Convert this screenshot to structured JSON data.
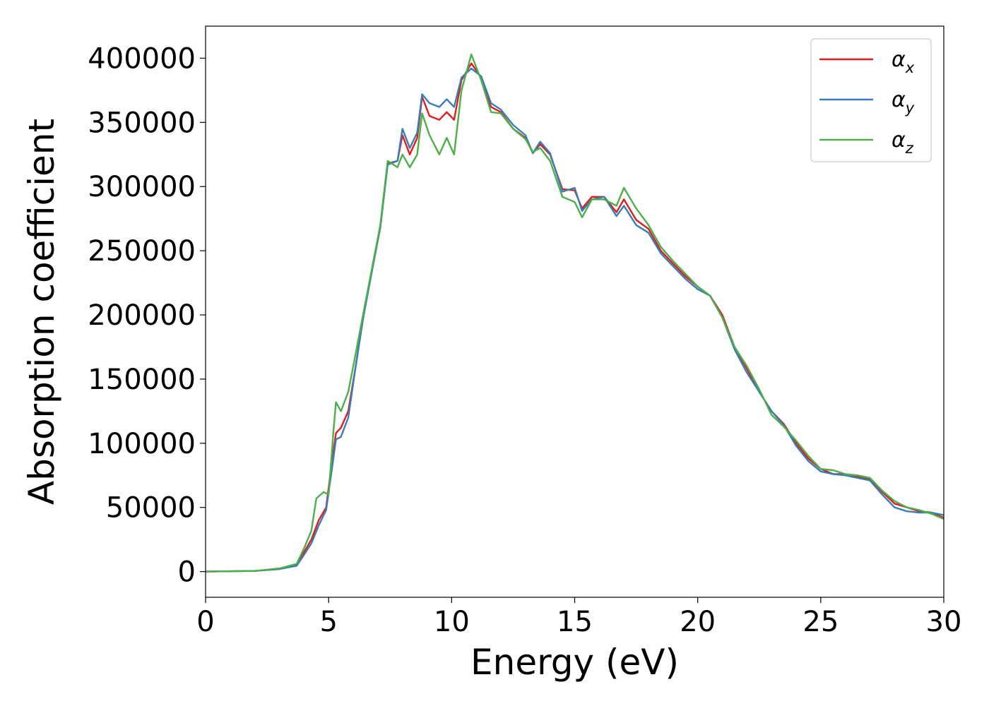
{
  "chart_data": {
    "type": "line",
    "title": "",
    "xlabel": "Energy (eV)",
    "ylabel": "Absorption coefficient",
    "xlim": [
      0,
      30
    ],
    "ylim": [
      -20000,
      425000
    ],
    "xticks": [
      0,
      5,
      10,
      15,
      20,
      25,
      30
    ],
    "xtick_labels": [
      "0",
      "5",
      "10",
      "15",
      "20",
      "25",
      "30"
    ],
    "yticks": [
      0,
      50000,
      100000,
      150000,
      200000,
      250000,
      300000,
      350000,
      400000
    ],
    "ytick_labels": [
      "0",
      "50000",
      "100000",
      "150000",
      "200000",
      "250000",
      "300000",
      "350000",
      "400000"
    ],
    "grid": false,
    "legend_position": "top-right",
    "series": [
      {
        "name": "α_x",
        "symbol": "α",
        "subscript": "x",
        "color": "#e41a1c",
        "points": [
          [
            0,
            0
          ],
          [
            2,
            500
          ],
          [
            3,
            2000
          ],
          [
            3.7,
            5000
          ],
          [
            4,
            15000
          ],
          [
            4.3,
            25000
          ],
          [
            4.6,
            40000
          ],
          [
            4.9,
            50000
          ],
          [
            5.1,
            80000
          ],
          [
            5.3,
            108000
          ],
          [
            5.5,
            112000
          ],
          [
            5.8,
            125000
          ],
          [
            6.1,
            160000
          ],
          [
            6.4,
            197000
          ],
          [
            6.8,
            240000
          ],
          [
            7.1,
            268000
          ],
          [
            7.4,
            318000
          ],
          [
            7.8,
            320000
          ],
          [
            8.0,
            340000
          ],
          [
            8.3,
            325000
          ],
          [
            8.6,
            338000
          ],
          [
            8.8,
            370000
          ],
          [
            9.1,
            355000
          ],
          [
            9.5,
            352000
          ],
          [
            9.8,
            358000
          ],
          [
            10.1,
            352000
          ],
          [
            10.4,
            383000
          ],
          [
            10.8,
            396000
          ],
          [
            11.2,
            385000
          ],
          [
            11.6,
            362000
          ],
          [
            12,
            358000
          ],
          [
            12.5,
            345000
          ],
          [
            13,
            338000
          ],
          [
            13.3,
            326000
          ],
          [
            13.6,
            333000
          ],
          [
            14,
            325000
          ],
          [
            14.5,
            298000
          ],
          [
            15,
            297000
          ],
          [
            15.3,
            283000
          ],
          [
            15.7,
            292000
          ],
          [
            16.2,
            292000
          ],
          [
            16.7,
            280000
          ],
          [
            17,
            290000
          ],
          [
            17.5,
            274000
          ],
          [
            18,
            267000
          ],
          [
            18.5,
            250000
          ],
          [
            19,
            240000
          ],
          [
            19.5,
            230000
          ],
          [
            20,
            222000
          ],
          [
            20.5,
            215000
          ],
          [
            21,
            200000
          ],
          [
            21.5,
            175000
          ],
          [
            22,
            158000
          ],
          [
            22.5,
            140000
          ],
          [
            23,
            125000
          ],
          [
            23.5,
            115000
          ],
          [
            24,
            100000
          ],
          [
            24.5,
            88000
          ],
          [
            25,
            80000
          ],
          [
            25.5,
            76000
          ],
          [
            26,
            76000
          ],
          [
            26.5,
            74000
          ],
          [
            27,
            72000
          ],
          [
            27.5,
            62000
          ],
          [
            28,
            53000
          ],
          [
            28.5,
            50000
          ],
          [
            29,
            47000
          ],
          [
            29.5,
            46000
          ],
          [
            30,
            42000
          ]
        ]
      },
      {
        "name": "α_y",
        "symbol": "α",
        "subscript": "y",
        "color": "#377eb8",
        "points": [
          [
            0,
            0
          ],
          [
            2,
            500
          ],
          [
            3,
            2000
          ],
          [
            3.7,
            4500
          ],
          [
            4,
            13000
          ],
          [
            4.3,
            22000
          ],
          [
            4.6,
            36000
          ],
          [
            4.9,
            48000
          ],
          [
            5.1,
            75000
          ],
          [
            5.3,
            103000
          ],
          [
            5.5,
            105000
          ],
          [
            5.8,
            120000
          ],
          [
            6.1,
            160000
          ],
          [
            6.4,
            197000
          ],
          [
            6.8,
            238000
          ],
          [
            7.1,
            268000
          ],
          [
            7.4,
            317000
          ],
          [
            7.8,
            320000
          ],
          [
            8.0,
            345000
          ],
          [
            8.3,
            330000
          ],
          [
            8.6,
            342000
          ],
          [
            8.8,
            372000
          ],
          [
            9.1,
            365000
          ],
          [
            9.5,
            362000
          ],
          [
            9.8,
            368000
          ],
          [
            10.1,
            362000
          ],
          [
            10.4,
            385000
          ],
          [
            10.8,
            392000
          ],
          [
            11.2,
            386000
          ],
          [
            11.6,
            365000
          ],
          [
            12,
            360000
          ],
          [
            12.5,
            348000
          ],
          [
            13,
            340000
          ],
          [
            13.3,
            326000
          ],
          [
            13.6,
            335000
          ],
          [
            14,
            326000
          ],
          [
            14.5,
            296000
          ],
          [
            15,
            299000
          ],
          [
            15.3,
            281000
          ],
          [
            15.7,
            290000
          ],
          [
            16.2,
            292000
          ],
          [
            16.7,
            277000
          ],
          [
            17,
            285000
          ],
          [
            17.5,
            270000
          ],
          [
            18,
            264000
          ],
          [
            18.5,
            248000
          ],
          [
            19,
            238000
          ],
          [
            19.5,
            228000
          ],
          [
            20,
            220000
          ],
          [
            20.5,
            215000
          ],
          [
            21,
            198000
          ],
          [
            21.5,
            173000
          ],
          [
            22,
            155000
          ],
          [
            22.5,
            140000
          ],
          [
            23,
            125000
          ],
          [
            23.5,
            114000
          ],
          [
            24,
            98000
          ],
          [
            24.5,
            86000
          ],
          [
            25,
            78000
          ],
          [
            25.5,
            76000
          ],
          [
            26,
            75000
          ],
          [
            26.5,
            73000
          ],
          [
            27,
            71000
          ],
          [
            27.5,
            60000
          ],
          [
            28,
            50000
          ],
          [
            28.5,
            47000
          ],
          [
            29,
            46000
          ],
          [
            29.5,
            46000
          ],
          [
            30,
            44000
          ]
        ]
      },
      {
        "name": "α_z",
        "symbol": "α",
        "subscript": "z",
        "color": "#4daf4a",
        "points": [
          [
            0,
            0
          ],
          [
            2,
            500
          ],
          [
            3,
            2500
          ],
          [
            3.7,
            6000
          ],
          [
            4,
            18000
          ],
          [
            4.3,
            32000
          ],
          [
            4.5,
            57000
          ],
          [
            4.8,
            62000
          ],
          [
            5.0,
            60000
          ],
          [
            5.2,
            110000
          ],
          [
            5.3,
            132000
          ],
          [
            5.5,
            125000
          ],
          [
            5.8,
            140000
          ],
          [
            6.1,
            170000
          ],
          [
            6.4,
            200000
          ],
          [
            6.8,
            240000
          ],
          [
            7.1,
            270000
          ],
          [
            7.4,
            320000
          ],
          [
            7.8,
            315000
          ],
          [
            8.0,
            325000
          ],
          [
            8.3,
            315000
          ],
          [
            8.6,
            325000
          ],
          [
            8.8,
            357000
          ],
          [
            9.1,
            340000
          ],
          [
            9.5,
            325000
          ],
          [
            9.8,
            338000
          ],
          [
            10.1,
            325000
          ],
          [
            10.4,
            375000
          ],
          [
            10.8,
            403000
          ],
          [
            11.2,
            383000
          ],
          [
            11.6,
            358000
          ],
          [
            12,
            357000
          ],
          [
            12.5,
            345000
          ],
          [
            13,
            337000
          ],
          [
            13.3,
            327000
          ],
          [
            13.6,
            330000
          ],
          [
            14,
            320000
          ],
          [
            14.5,
            292000
          ],
          [
            15,
            288000
          ],
          [
            15.3,
            276000
          ],
          [
            15.7,
            290000
          ],
          [
            16.2,
            290000
          ],
          [
            16.7,
            285000
          ],
          [
            17,
            299000
          ],
          [
            17.5,
            283000
          ],
          [
            18,
            270000
          ],
          [
            18.5,
            253000
          ],
          [
            19,
            242000
          ],
          [
            19.5,
            232000
          ],
          [
            20,
            222000
          ],
          [
            20.5,
            215000
          ],
          [
            21,
            198000
          ],
          [
            21.5,
            175000
          ],
          [
            22,
            160000
          ],
          [
            22.5,
            142000
          ],
          [
            23,
            122000
          ],
          [
            23.5,
            113000
          ],
          [
            24,
            102000
          ],
          [
            24.5,
            90000
          ],
          [
            25,
            80000
          ],
          [
            25.5,
            79000
          ],
          [
            26,
            76000
          ],
          [
            26.5,
            75000
          ],
          [
            27,
            73000
          ],
          [
            27.5,
            63000
          ],
          [
            28,
            55000
          ],
          [
            28.5,
            50000
          ],
          [
            29,
            48000
          ],
          [
            29.5,
            45000
          ],
          [
            30,
            41000
          ]
        ]
      }
    ]
  }
}
